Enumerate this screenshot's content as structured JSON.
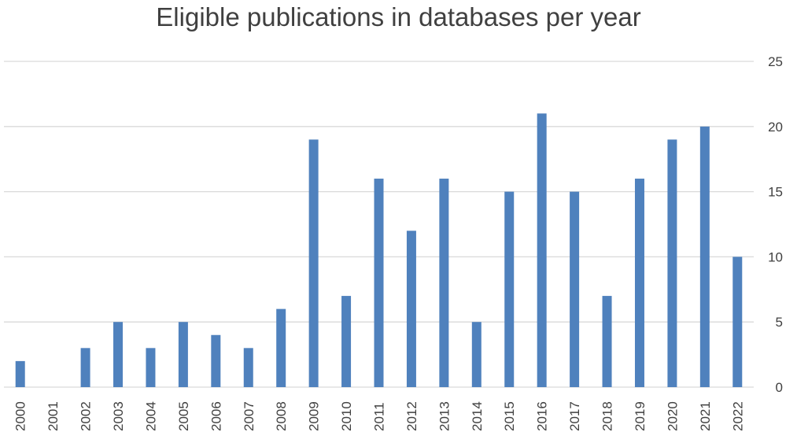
{
  "chart_data": {
    "type": "bar",
    "title": "Eligible publications in databases per year",
    "categories": [
      "2000",
      "2001",
      "2002",
      "2003",
      "2004",
      "2005",
      "2006",
      "2007",
      "2008",
      "2009",
      "2010",
      "2011",
      "2012",
      "2013",
      "2014",
      "2015",
      "2016",
      "2017",
      "2018",
      "2019",
      "2020",
      "2021",
      "2022"
    ],
    "values": [
      2,
      0,
      3,
      5,
      3,
      5,
      4,
      3,
      6,
      19,
      7,
      16,
      12,
      16,
      5,
      15,
      21,
      15,
      7,
      16,
      19,
      20,
      10
    ],
    "ylim": [
      0,
      25
    ],
    "yticks": [
      0,
      5,
      10,
      15,
      20,
      25
    ],
    "y_axis_side": "right",
    "grid": true,
    "bar_color": "#4f81bd",
    "grid_color": "#d9d9d9"
  }
}
